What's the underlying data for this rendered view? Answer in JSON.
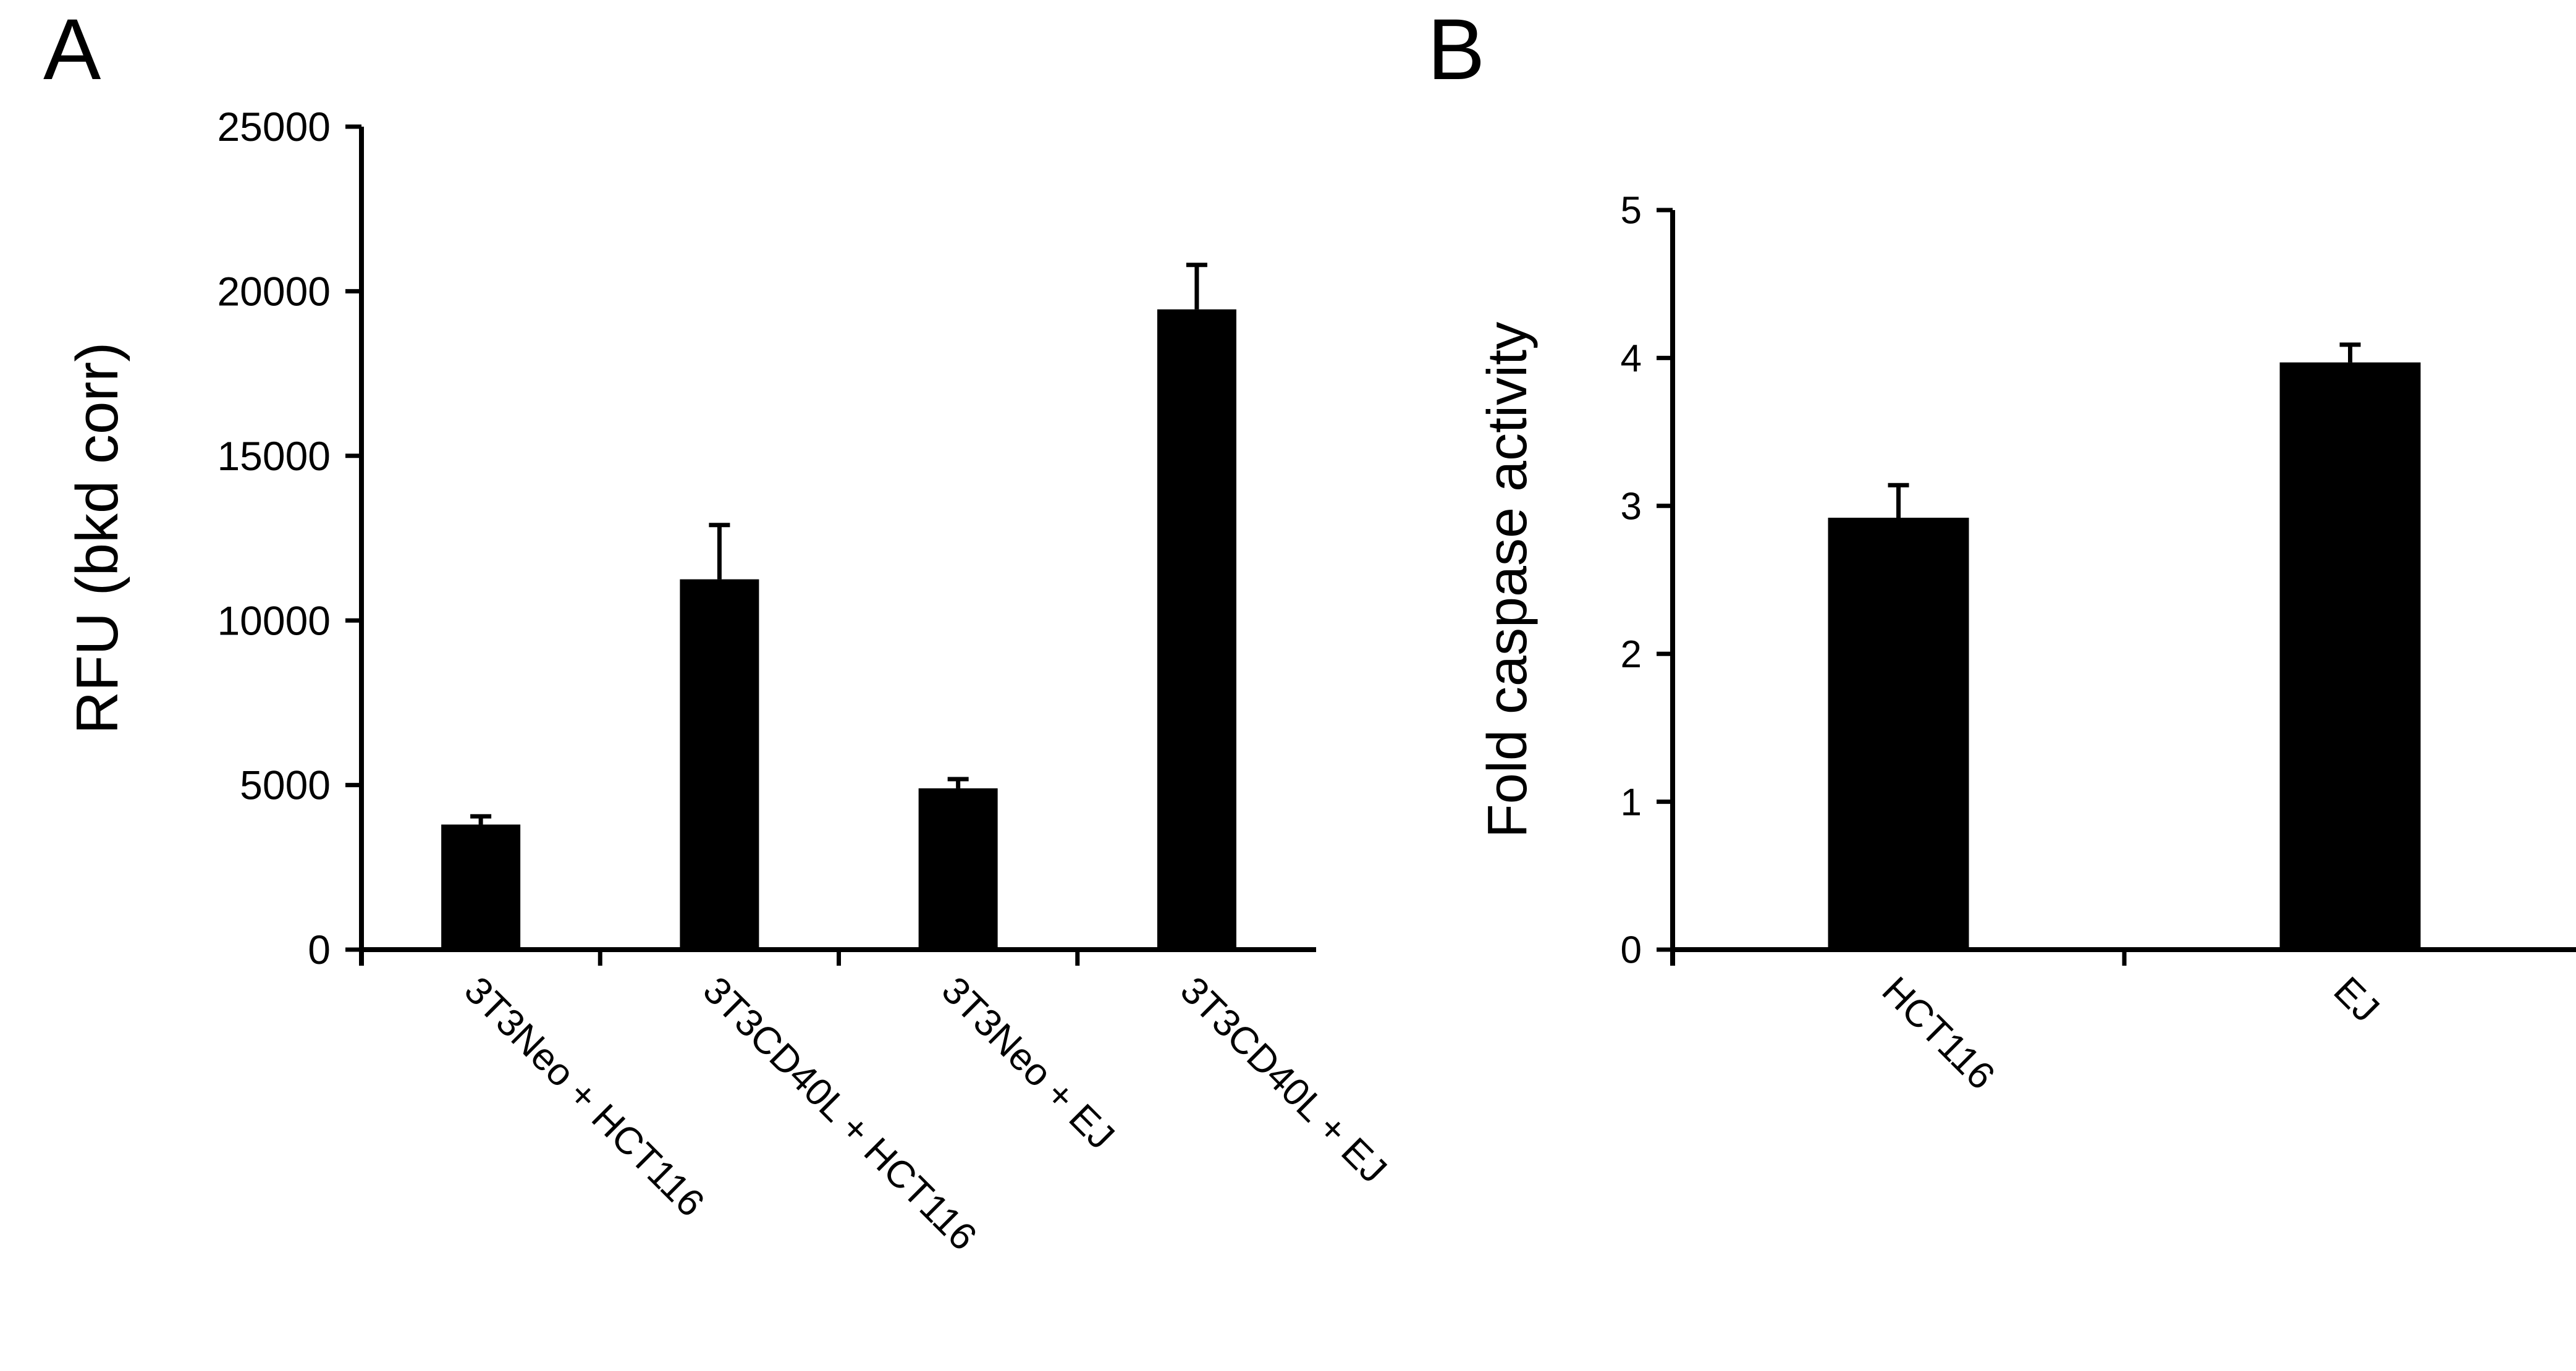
{
  "panels": [
    {
      "letter": "A"
    },
    {
      "letter": "B"
    }
  ],
  "chart_data": [
    {
      "type": "bar",
      "panel": "A",
      "categories": [
        "3T3Neo + HCT116",
        "3T3CD40L + HCT116",
        "3T3Neo + EJ",
        "3T3CD40L + EJ"
      ],
      "values": [
        3800,
        11250,
        4900,
        19450
      ],
      "errors": [
        250,
        1650,
        280,
        1350
      ],
      "ylabel": "RFU (bkd corr)",
      "xlabel": "",
      "ylim": [
        0,
        25000
      ],
      "yticks": [
        0,
        5000,
        10000,
        15000,
        20000,
        25000
      ],
      "bar_color": "#000000",
      "grid": false,
      "legend": "none"
    },
    {
      "type": "bar",
      "panel": "B",
      "categories": [
        "HCT116",
        "EJ"
      ],
      "values": [
        2.92,
        3.97
      ],
      "errors": [
        0.22,
        0.12
      ],
      "ylabel": "Fold caspase activity",
      "xlabel": "",
      "ylim": [
        0,
        5
      ],
      "yticks": [
        0,
        1,
        2,
        3,
        4,
        5
      ],
      "bar_color": "#000000",
      "grid": false,
      "legend": "none"
    }
  ]
}
